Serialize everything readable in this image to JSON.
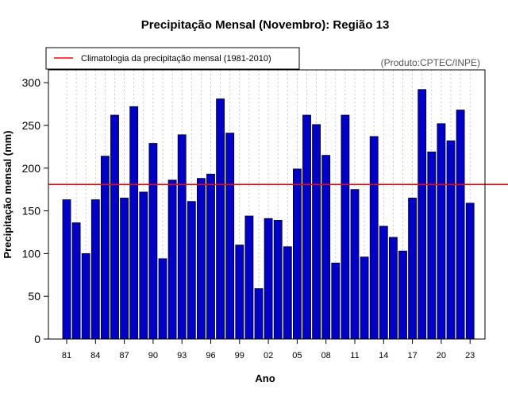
{
  "chart_data": {
    "type": "bar",
    "title": "Precipitação Mensal (Novembro): Região 13",
    "xlabel": "Ano",
    "ylabel": "Precipitação mensal (mm)",
    "ylim": [
      0,
      315
    ],
    "yticks": [
      0,
      50,
      100,
      150,
      200,
      250,
      300
    ],
    "years": [
      1981,
      1982,
      1983,
      1984,
      1985,
      1986,
      1987,
      1988,
      1989,
      1990,
      1991,
      1992,
      1993,
      1994,
      1995,
      1996,
      1997,
      1998,
      1999,
      2000,
      2001,
      2002,
      2003,
      2004,
      2005,
      2006,
      2007,
      2008,
      2009,
      2010,
      2011,
      2012,
      2013,
      2014,
      2015,
      2016,
      2017,
      2018,
      2019,
      2020,
      2021,
      2022,
      2023
    ],
    "values": [
      163,
      136,
      100,
      163,
      214,
      262,
      165,
      272,
      172,
      229,
      94,
      186,
      239,
      161,
      188,
      193,
      281,
      241,
      110,
      144,
      59,
      141,
      139,
      108,
      199,
      262,
      251,
      215,
      89,
      262,
      175,
      96,
      237,
      132,
      119,
      103,
      165,
      292,
      219,
      252,
      232,
      268,
      159
    ],
    "xtick_labels": [
      "81",
      "84",
      "87",
      "90",
      "93",
      "96",
      "99",
      "02",
      "05",
      "08",
      "11",
      "14",
      "17",
      "20",
      "23"
    ],
    "xtick_years": [
      1981,
      1984,
      1987,
      1990,
      1993,
      1996,
      1999,
      2002,
      2005,
      2008,
      2011,
      2014,
      2017,
      2020,
      2023
    ],
    "climatology": {
      "label": "Climatologia da precipitação mensal (1981-2010)",
      "value": 181,
      "color": "#ff0000"
    },
    "bar_color": "#0000cd",
    "credit": "(Produto:CPTEC/INPE)",
    "legend_position": "top-left",
    "grid": "vertical dotted"
  }
}
